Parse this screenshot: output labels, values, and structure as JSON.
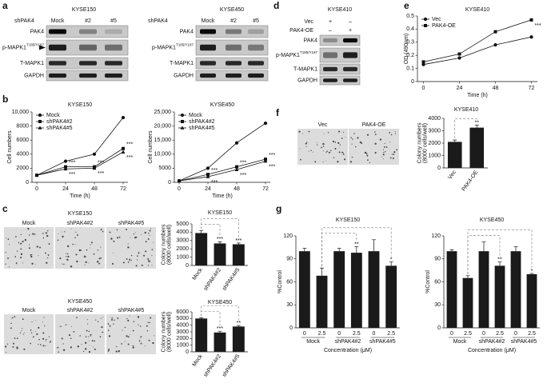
{
  "panel_labels": [
    "a",
    "b",
    "c",
    "d",
    "e",
    "f",
    "g"
  ],
  "blots": [
    {
      "title": "KYSE150",
      "header": "shPAK4",
      "lanes": [
        "Mock",
        "#2",
        "#5"
      ],
      "rows": [
        {
          "name": "PAK4"
        },
        {
          "name": "p-MAPK1",
          "sup": "T185/Y187"
        },
        {
          "name": "T-MAPK1"
        },
        {
          "name": "GAPDH"
        }
      ]
    },
    {
      "title": "KYSE450",
      "header": "shPAK4",
      "lanes": [
        "Mock",
        "#2",
        "#5"
      ],
      "rows": [
        {
          "name": "PAK4"
        },
        {
          "name": "p-MAPK1",
          "sup": "T185/Y187"
        },
        {
          "name": "T-MAPK1"
        },
        {
          "name": "GAPDH"
        }
      ]
    },
    {
      "title": "KYSE410",
      "conditions": [
        {
          "name": "Vec",
          "signs": [
            "+",
            "–"
          ]
        },
        {
          "name": "PAK4-OE",
          "signs": [
            "–",
            "+"
          ]
        }
      ],
      "rows": [
        {
          "name": "PAK4"
        },
        {
          "name": "p-MAPK1",
          "sup": "T185/Y187"
        },
        {
          "name": "T-MAPK1"
        },
        {
          "name": "GAPDH"
        }
      ]
    }
  ],
  "micrographs": [
    {
      "title": "KYSE150",
      "labels": [
        "Mock",
        "shPAK4#2",
        "shPAK4#5"
      ]
    },
    {
      "title": "KYSE450",
      "labels": [
        "Mock",
        "shPAK4#2",
        "shPAK4#5"
      ]
    },
    {
      "labels": [
        "Vec",
        "PAK4-OE"
      ]
    }
  ],
  "chart_data": [
    {
      "type": "line",
      "title": "KYSE150",
      "x": [
        0,
        24,
        48,
        72
      ],
      "xlim": [
        -4,
        76
      ],
      "xticks": [
        0,
        24,
        48,
        72
      ],
      "ylim": [
        0,
        10000
      ],
      "yticks": [
        0,
        2000,
        4000,
        6000,
        8000,
        {
          "value": 10000,
          "label": "10,000"
        }
      ],
      "xlabel": "Time (h)",
      "ylabel": "Cell numbers",
      "legend": "upper left",
      "series": [
        {
          "name": "Mock",
          "color": "#111111",
          "marker": "circle",
          "values": [
            1000,
            3000,
            4000,
            9200
          ]
        },
        {
          "name": "shPAK4#2",
          "color": "#111111",
          "marker": "square",
          "values": [
            1000,
            2200,
            2200,
            4800
          ]
        },
        {
          "name": "shPAK4#5",
          "color": "#111111",
          "marker": "triangle",
          "values": [
            1000,
            1900,
            2000,
            4300
          ]
        }
      ],
      "annotations": [
        {
          "text": "***",
          "series": 1,
          "index": 1
        },
        {
          "text": "***",
          "series": 1,
          "index": 2
        },
        {
          "text": "***",
          "series": 1,
          "index": 3
        },
        {
          "text": "***",
          "series": 2,
          "index": 1
        },
        {
          "text": "***",
          "series": 2,
          "index": 2
        },
        {
          "text": "***",
          "series": 2,
          "index": 3
        }
      ]
    },
    {
      "type": "line",
      "title": "KYSE450",
      "x": [
        0,
        24,
        48,
        72
      ],
      "xlim": [
        -4,
        76
      ],
      "xticks": [
        0,
        24,
        48,
        72
      ],
      "ylim": [
        0,
        25000
      ],
      "yticks": [
        0,
        5000,
        {
          "value": 10000,
          "label": "10,000"
        },
        {
          "value": 15000,
          "label": "15,000"
        },
        {
          "value": 20000,
          "label": "20,000"
        },
        {
          "value": 25000,
          "label": "25,000"
        }
      ],
      "xlabel": "Time (h)",
      "ylabel": "Cell numbers",
      "legend": "upper left",
      "series": [
        {
          "name": "Mock",
          "color": "#111111",
          "marker": "circle",
          "values": [
            500,
            5000,
            14000,
            21000
          ]
        },
        {
          "name": "shPAK4#2",
          "color": "#111111",
          "marker": "square",
          "values": [
            500,
            2800,
            5500,
            8200
          ]
        },
        {
          "name": "shPAK4#5",
          "color": "#111111",
          "marker": "triangle",
          "values": [
            500,
            2000,
            4500,
            7500
          ]
        }
      ],
      "annotations": [
        {
          "text": "***",
          "series": 1,
          "index": 1
        },
        {
          "text": "***",
          "series": 1,
          "index": 2
        },
        {
          "text": "***",
          "series": 1,
          "index": 3
        },
        {
          "text": "***",
          "series": 2,
          "index": 1
        },
        {
          "text": "***",
          "series": 2,
          "index": 2
        },
        {
          "text": "***",
          "series": 2,
          "index": 3
        }
      ]
    },
    {
      "type": "line",
      "title": "KYSE410",
      "x": [
        0,
        24,
        48,
        72
      ],
      "xlim": [
        -4,
        76
      ],
      "xticks": [
        0,
        24,
        48,
        72
      ],
      "ylim": [
        0,
        0.5
      ],
      "yticks": [
        0,
        0.1,
        0.2,
        0.3,
        0.4,
        0.5
      ],
      "xlabel": "Time (h)",
      "ylabel": "OD (490nm)",
      "legend": "upper left",
      "series": [
        {
          "name": "Vec",
          "color": "#111111",
          "marker": "circle",
          "values": [
            0.13,
            0.18,
            0.28,
            0.34
          ]
        },
        {
          "name": "PAK4-OE",
          "color": "#111111",
          "marker": "square",
          "values": [
            0.15,
            0.21,
            0.38,
            0.47
          ]
        }
      ],
      "annotations": [
        {
          "text": "***",
          "series": 1,
          "index": 3
        }
      ]
    },
    {
      "type": "bar",
      "title": "KYSE410",
      "categories": [
        "Vec",
        "PAK4-OE"
      ],
      "values": [
        2100,
        3250
      ],
      "errors": [
        150,
        200
      ],
      "color": "#1a1a1a",
      "ylim": [
        0,
        4000
      ],
      "yticks": [
        0,
        1000,
        2000,
        3000,
        4000
      ],
      "ylabel": [
        "Colony numbers",
        "(8000 cells/well)"
      ],
      "annotations": [
        {
          "text": "**",
          "index": 1
        }
      ]
    },
    {
      "type": "bar",
      "title": "KYSE150",
      "categories": [
        "Mock",
        "shPAK4#2",
        "shPAK4#5"
      ],
      "values": [
        3900,
        2650,
        2550
      ],
      "errors": [
        300,
        200,
        150
      ],
      "color": "#1a1a1a",
      "ylim": [
        0,
        5000
      ],
      "yticks": [
        0,
        1000,
        2000,
        3000,
        4000,
        5000
      ],
      "ylabel": [
        "Colony numbers",
        "(8000 cells/well)"
      ],
      "annotations": [
        {
          "text": "***",
          "index": 1
        },
        {
          "text": "***",
          "index": 2
        }
      ]
    },
    {
      "type": "bar",
      "title": "KYSE450",
      "categories": [
        "Mock",
        "shPAK4#2",
        "shPAK4#5"
      ],
      "values": [
        5000,
        2900,
        3800
      ],
      "errors": [
        100,
        200,
        150
      ],
      "color": "#1a1a1a",
      "ylim": [
        0,
        6000
      ],
      "yticks": [
        0,
        1000,
        2000,
        3000,
        4000,
        5000,
        6000
      ],
      "ylabel": [
        "Colony numbers",
        "(8000 cells/well)"
      ],
      "annotations": [
        {
          "text": "***",
          "index": 1
        },
        {
          "text": "**",
          "index": 2
        }
      ]
    },
    {
      "type": "bar",
      "title": "KYSE150",
      "categories": [
        "0",
        "2.5",
        "0",
        "2.5",
        "0",
        "2.5"
      ],
      "groups": [
        "Mock",
        "shPAK4#2",
        "shPAK4#5"
      ],
      "values": [
        100,
        68,
        100,
        98,
        100,
        81
      ],
      "errors": [
        4,
        10,
        4,
        8,
        15,
        5
      ],
      "color": "#1a1a1a",
      "ylim": [
        0,
        120
      ],
      "yticks": [
        0,
        30,
        60,
        90,
        120
      ],
      "ylabel": [
        "%Control"
      ],
      "xlabel": "Concentration (μM)",
      "annotations": [
        {
          "text": "**",
          "index": 3
        },
        {
          "text": "*",
          "index": 5
        }
      ]
    },
    {
      "type": "bar",
      "title": "KYSE450",
      "categories": [
        "0",
        "2.5",
        "0",
        "2.5",
        "0",
        "2.5"
      ],
      "groups": [
        "Mock",
        "shPAK4#2",
        "shPAK4#5"
      ],
      "values": [
        100,
        65,
        100,
        81,
        100,
        70
      ],
      "errors": [
        2,
        3,
        12,
        5,
        6,
        1
      ],
      "color": "#1a1a1a",
      "ylim": [
        0,
        120
      ],
      "yticks": [
        0,
        30,
        60,
        90,
        120
      ],
      "ylabel": [
        "%Control"
      ],
      "xlabel": "Concentration (μM)",
      "annotations": [
        {
          "text": "**",
          "index": 3
        },
        {
          "text": "*",
          "index": 5
        }
      ]
    }
  ]
}
